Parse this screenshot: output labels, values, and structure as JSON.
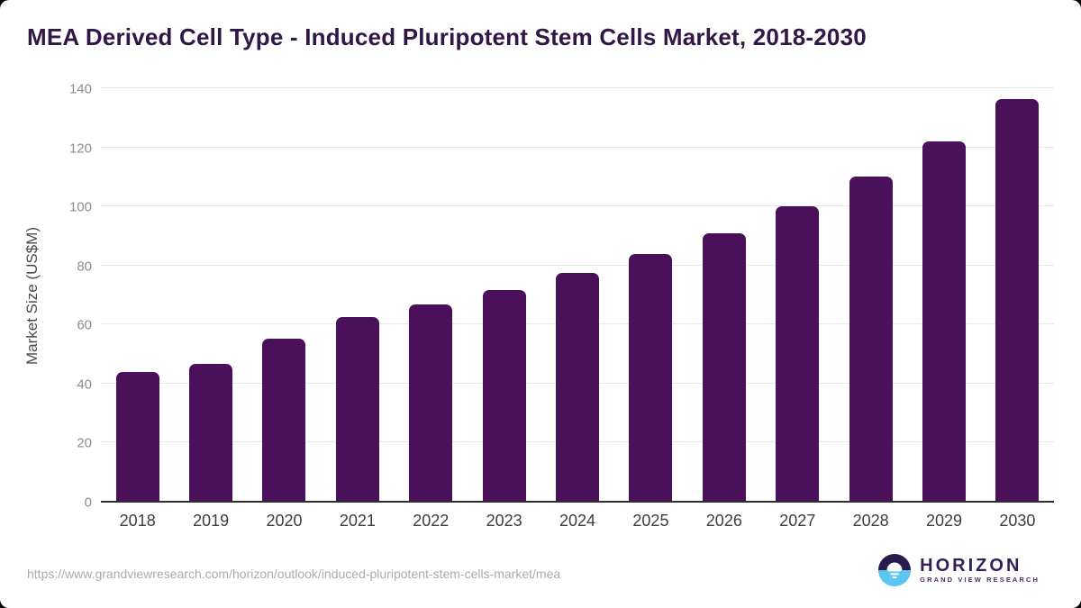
{
  "title": "MEA Derived Cell Type - Induced Pluripotent Stem Cells Market, 2018-2030",
  "chart_data": {
    "type": "bar",
    "title": "MEA Derived Cell Type - Induced Pluripotent Stem Cells Market, 2018-2030",
    "categories": [
      "2018",
      "2019",
      "2020",
      "2021",
      "2022",
      "2023",
      "2024",
      "2025",
      "2026",
      "2027",
      "2028",
      "2029",
      "2030"
    ],
    "values": [
      43.5,
      46.3,
      55.0,
      62.2,
      66.4,
      71.3,
      77.1,
      83.5,
      90.7,
      99.6,
      109.7,
      121.8,
      136.0
    ],
    "xlabel": "",
    "ylabel": "Market Size (US$M)",
    "ylim": [
      0,
      140
    ],
    "yticks": [
      0,
      20,
      40,
      60,
      80,
      100,
      120,
      140
    ],
    "grid": true,
    "legend": "none",
    "bar_color": "#4a1059"
  },
  "colors": {
    "bar": "#4a1059",
    "title_text": "#321646",
    "gridline": "#e7e7e7",
    "axis_line": "#2d2d2d",
    "tick_text": "#8c8c8c",
    "logo_dark": "#2b1b4d",
    "logo_blue": "#5bc6f0"
  },
  "footer": {
    "source_url": "https://www.grandviewresearch.com/horizon/outlook/induced-pluripotent-stem-cells-market/mea",
    "logo": {
      "name": "HORIZON",
      "subtitle": "GRAND VIEW RESEARCH"
    }
  }
}
